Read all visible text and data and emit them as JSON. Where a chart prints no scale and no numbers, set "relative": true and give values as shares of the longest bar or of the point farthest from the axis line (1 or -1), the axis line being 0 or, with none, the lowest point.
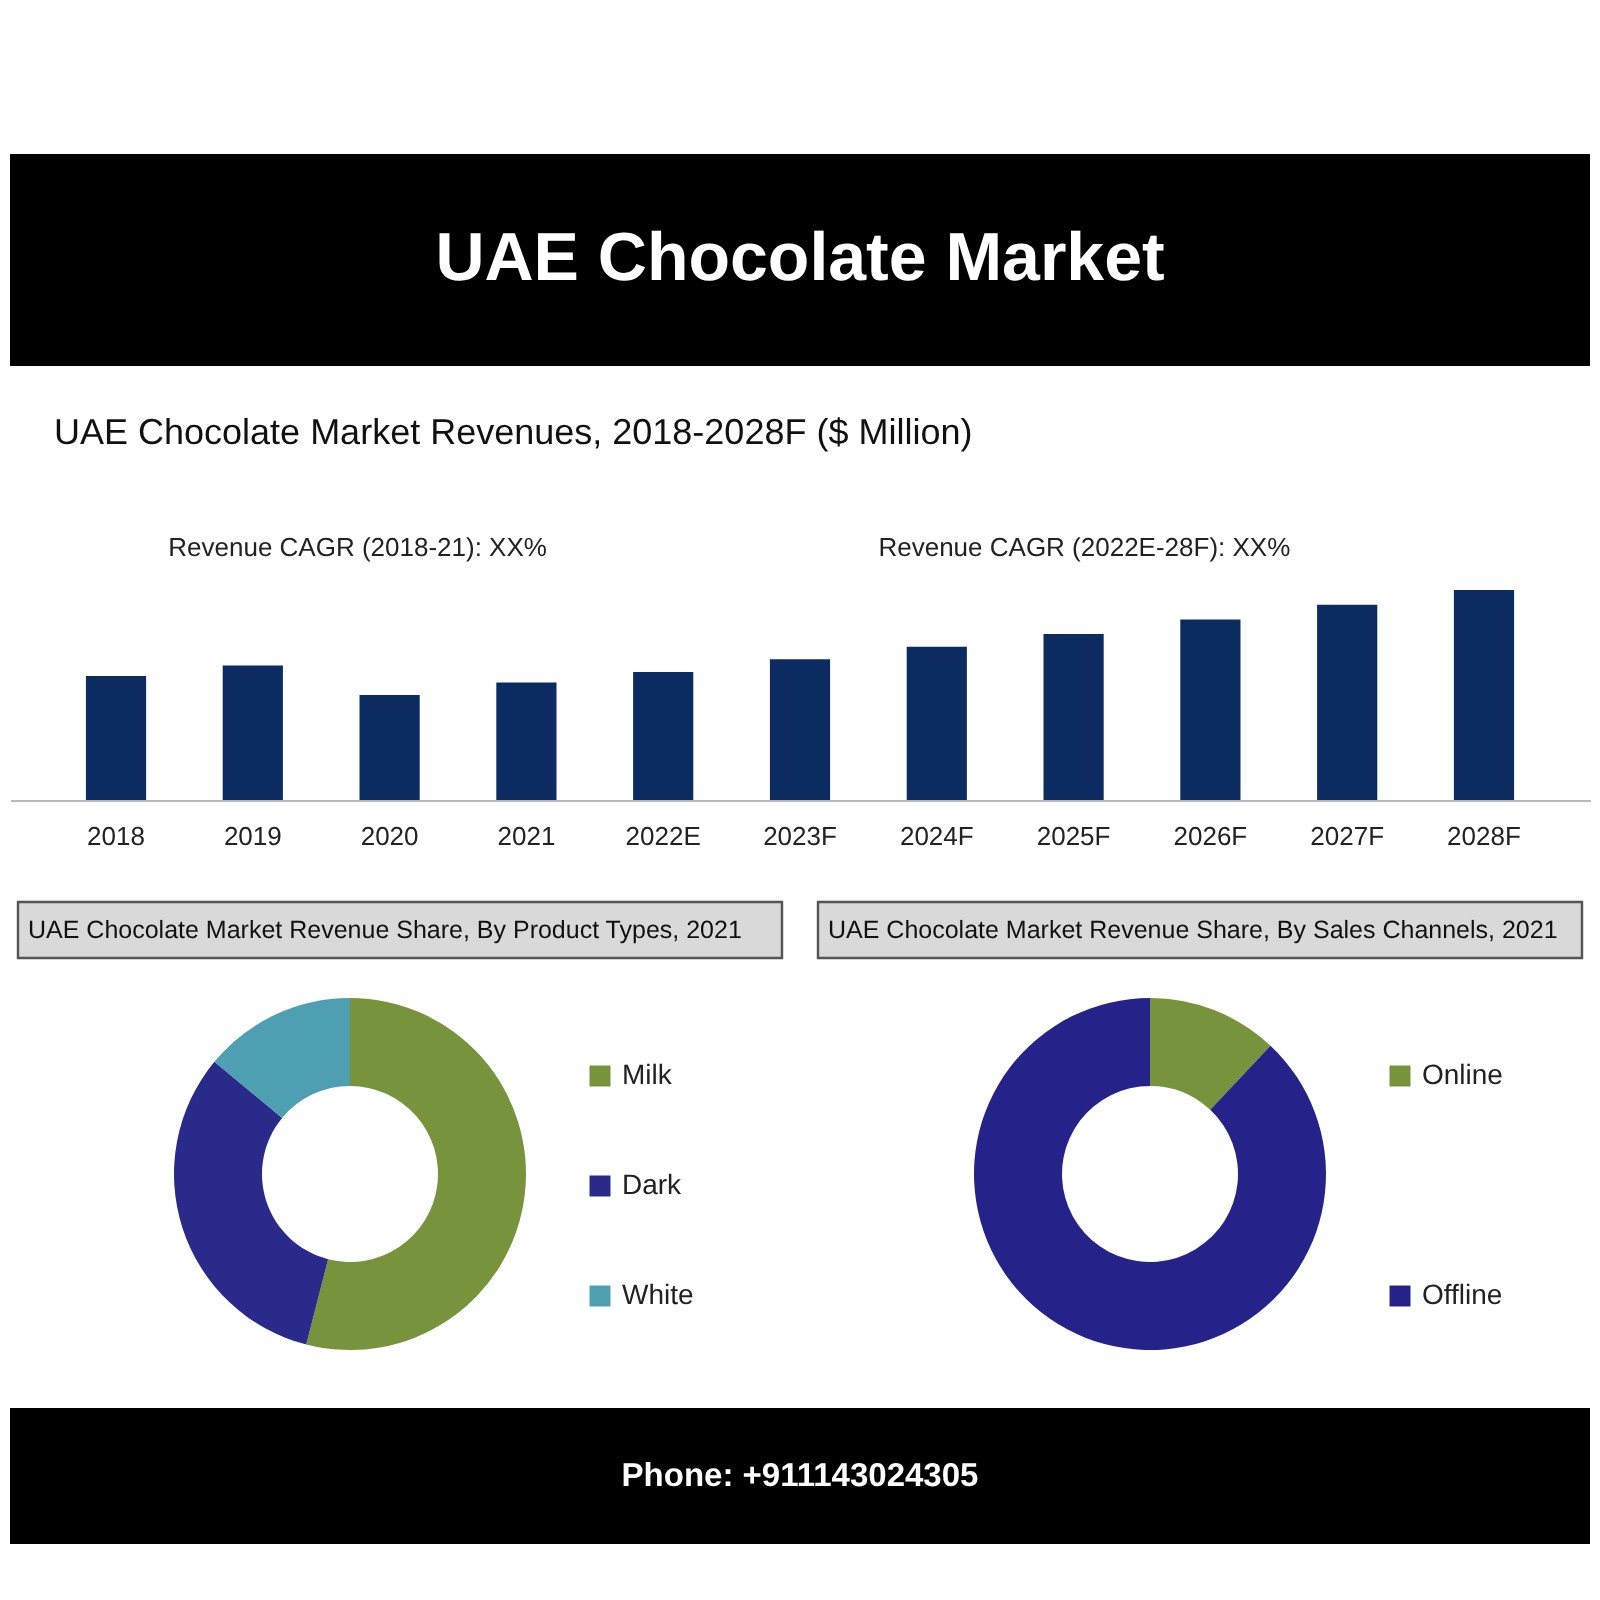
{
  "chart_data": [
    {
      "type": "other",
      "title": "UAE Chocolate Market"
    },
    {
      "type": "bar",
      "title": "UAE Chocolate Market Revenues, 2018-2028F ($ Million)",
      "annotations": [
        "Revenue CAGR (2018-21): XX%",
        "Revenue CAGR (2022E-28F): XX%"
      ],
      "categories": [
        "2018",
        "2019",
        "2020",
        "2021",
        "2022E",
        "2023F",
        "2024F",
        "2025F",
        "2026F",
        "2027F",
        "2028F"
      ],
      "values": [
        0.59,
        0.64,
        0.5,
        0.56,
        0.61,
        0.67,
        0.73,
        0.79,
        0.86,
        0.93,
        1
      ],
      "color": "#0c2b60",
      "relative": true
    },
    {
      "type": "donut",
      "title": "UAE Chocolate Market Revenue Share, By Product Types, 2021",
      "categories": [
        "Milk",
        "Dark",
        "White"
      ],
      "values": [
        54,
        32,
        14
      ],
      "colors": [
        "#77933c",
        "#2a2a8a",
        "#4e9fb2"
      ],
      "legend": "right"
    },
    {
      "type": "donut",
      "title": "UAE Chocolate Market Revenue Share, By Sales Channels, 2021",
      "categories": [
        "Online",
        "Offline"
      ],
      "values": [
        12,
        88
      ],
      "colors": [
        "#77933c",
        "#25238a"
      ],
      "legend": "right"
    },
    {
      "type": "other",
      "annotations": [
        "Phone: +911143024305"
      ]
    }
  ]
}
